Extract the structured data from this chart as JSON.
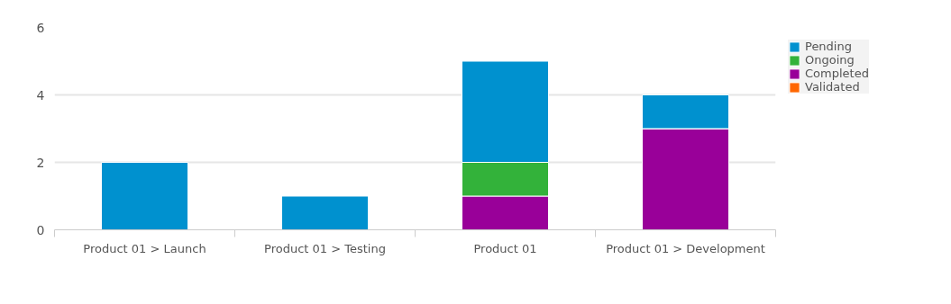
{
  "chart_data": {
    "type": "bar",
    "stacked": true,
    "categories": [
      "Product 01 > Launch",
      "Product 01 > Testing",
      "Product 01",
      "Product 01 > Development"
    ],
    "series": [
      {
        "name": "Validated",
        "color": "#ff6600",
        "values": [
          0,
          0,
          0,
          0
        ]
      },
      {
        "name": "Completed",
        "color": "#990099",
        "values": [
          0,
          0,
          1,
          3
        ]
      },
      {
        "name": "Ongoing",
        "color": "#33b23a",
        "values": [
          0,
          0,
          1,
          0
        ]
      },
      {
        "name": "Pending",
        "color": "#0091cf",
        "values": [
          2,
          1,
          3,
          1
        ]
      }
    ],
    "ylim": [
      0,
      6
    ],
    "yticks": [
      0,
      2,
      4,
      6
    ],
    "grid": "y",
    "legend": "right"
  }
}
